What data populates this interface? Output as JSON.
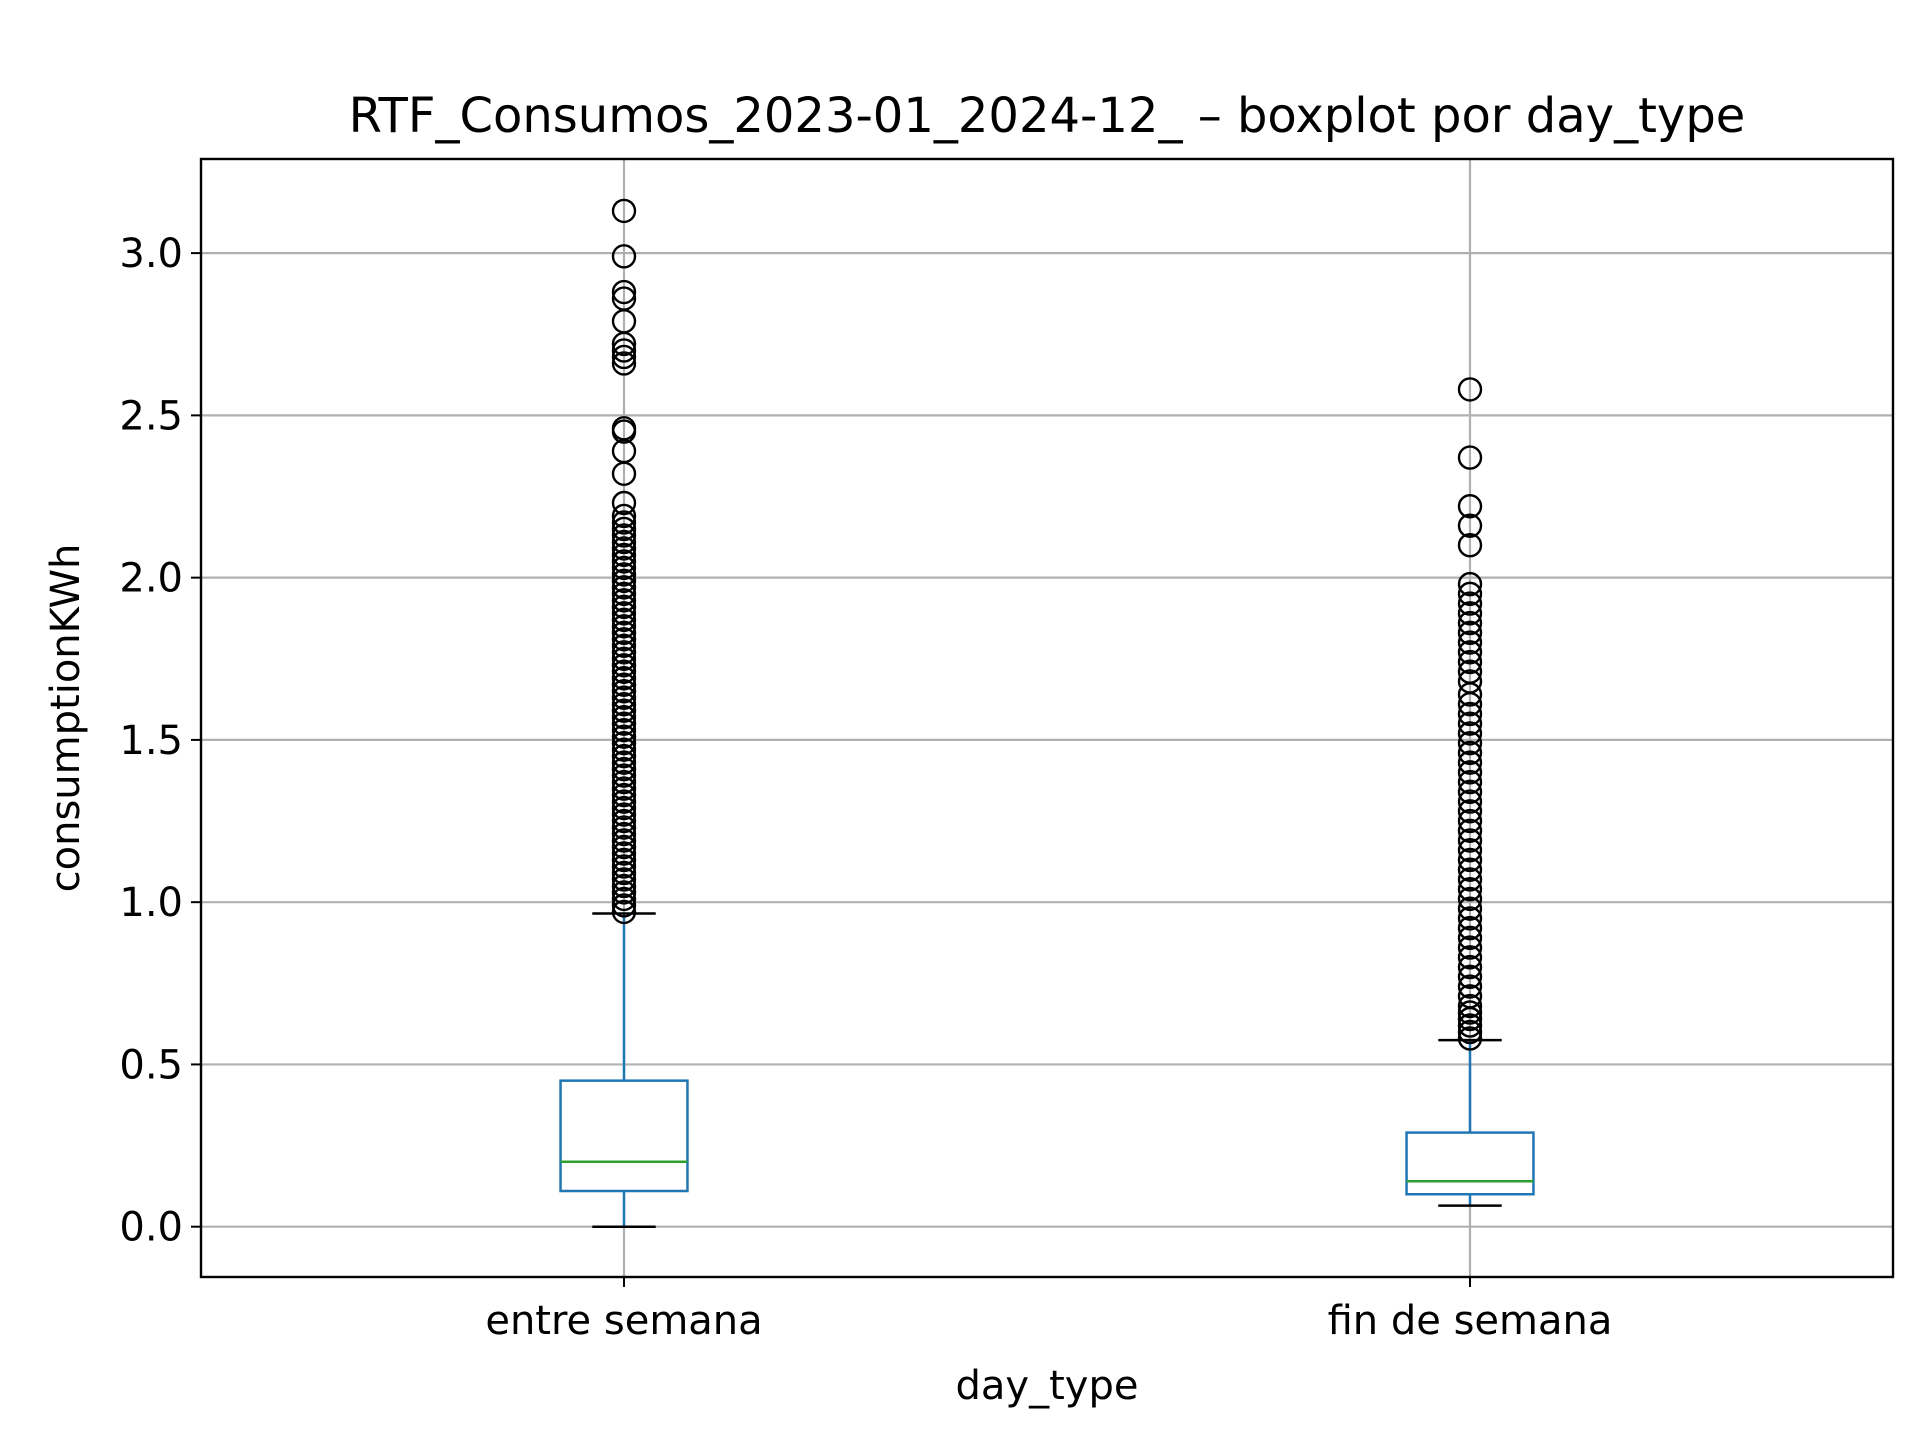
{
  "chart_data": {
    "type": "boxplot",
    "title": "RTF_Consumos_2023-01_2024-12_ – boxplot por day_type",
    "xlabel": "day_type",
    "ylabel": "consumptionKWh",
    "ylim": [
      -0.155,
      3.29
    ],
    "yticks": [
      0.0,
      0.5,
      1.0,
      1.5,
      2.0,
      2.5,
      3.0
    ],
    "ytick_labels": [
      "0.0",
      "0.5",
      "1.0",
      "1.5",
      "2.0",
      "2.5",
      "3.0"
    ],
    "grid": true,
    "colors": {
      "box": "#1f77b4",
      "median": "#2ca02c",
      "grid": "#b0b0b0",
      "flier": "#000000"
    },
    "categories": [
      "entre semana",
      "fin de semana"
    ],
    "boxes": [
      {
        "category": "entre semana",
        "whisker_low": 0.0,
        "q1": 0.11,
        "median": 0.2,
        "q3": 0.45,
        "whisker_high": 0.965,
        "fliers": [
          3.13,
          2.99,
          2.88,
          2.86,
          2.79,
          2.72,
          2.7,
          2.68,
          2.66,
          2.46,
          2.45,
          2.39,
          2.32,
          2.23,
          2.19,
          2.17,
          2.15,
          2.13,
          2.11,
          2.09,
          2.07,
          2.05,
          2.03,
          2.01,
          1.99,
          1.97,
          1.95,
          1.93,
          1.91,
          1.89,
          1.87,
          1.85,
          1.83,
          1.81,
          1.79,
          1.77,
          1.75,
          1.73,
          1.71,
          1.69,
          1.67,
          1.65,
          1.63,
          1.61,
          1.59,
          1.57,
          1.55,
          1.53,
          1.51,
          1.49,
          1.47,
          1.45,
          1.43,
          1.41,
          1.39,
          1.37,
          1.35,
          1.33,
          1.31,
          1.29,
          1.27,
          1.25,
          1.23,
          1.21,
          1.19,
          1.17,
          1.15,
          1.13,
          1.11,
          1.09,
          1.07,
          1.05,
          1.03,
          1.01,
          0.99,
          0.97
        ]
      },
      {
        "category": "fin de semana",
        "whisker_low": 0.065,
        "q1": 0.1,
        "median": 0.14,
        "q3": 0.29,
        "whisker_high": 0.575,
        "fliers": [
          2.58,
          2.37,
          2.22,
          2.16,
          2.1,
          1.98,
          1.95,
          1.92,
          1.89,
          1.86,
          1.83,
          1.8,
          1.77,
          1.74,
          1.71,
          1.68,
          1.64,
          1.61,
          1.58,
          1.55,
          1.52,
          1.49,
          1.46,
          1.43,
          1.4,
          1.37,
          1.34,
          1.31,
          1.28,
          1.25,
          1.22,
          1.19,
          1.16,
          1.13,
          1.1,
          1.07,
          1.04,
          1.01,
          0.98,
          0.95,
          0.92,
          0.89,
          0.86,
          0.83,
          0.8,
          0.77,
          0.74,
          0.71,
          0.68,
          0.66,
          0.64,
          0.62,
          0.6,
          0.58
        ]
      }
    ]
  }
}
